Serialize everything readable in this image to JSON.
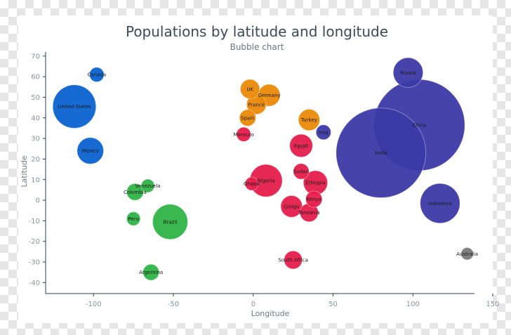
{
  "chart_data": {
    "type": "scatter",
    "title": "Populations by latitude and longitude",
    "subtitle": "Bubble chart",
    "xlabel": "Longitude",
    "ylabel": "Latitude",
    "xlim": [
      -130,
      150
    ],
    "ylim": [
      -45,
      72
    ],
    "xticks": [
      -100,
      -50,
      0,
      50,
      100,
      150
    ],
    "yticks": [
      70,
      60,
      50,
      40,
      30,
      20,
      10,
      0,
      -10,
      -20,
      -30,
      -40
    ],
    "grid": false,
    "colors": {
      "Americas": "#0a62d0",
      "South America": "#2fb344",
      "Europe": "#ea8a08",
      "Africa/Middle East": "#e51d4b",
      "Asia": "#3c3aa6",
      "Oceania": "#7a7a7a"
    },
    "points": [
      {
        "label": "Canada",
        "x": -98,
        "y": 61,
        "size": 36,
        "group": "Americas"
      },
      {
        "label": "United States",
        "x": -112,
        "y": 45.5,
        "size": 320,
        "group": "Americas"
      },
      {
        "label": "Mexico",
        "x": -102,
        "y": 24,
        "size": 120,
        "group": "Americas"
      },
      {
        "label": "Venezuela",
        "x": -66,
        "y": 7,
        "size": 30,
        "group": "South America"
      },
      {
        "label": "Colombia",
        "x": -74,
        "y": 4,
        "size": 48,
        "group": "South America"
      },
      {
        "label": "Peru",
        "x": -75,
        "y": -9,
        "size": 32,
        "group": "South America"
      },
      {
        "label": "Brazil",
        "x": -52,
        "y": -10.5,
        "size": 210,
        "group": "South America"
      },
      {
        "label": "Argentina",
        "x": -64,
        "y": -35,
        "size": 44,
        "group": "South America"
      },
      {
        "label": "UK",
        "x": -2,
        "y": 54,
        "size": 64,
        "group": "Europe"
      },
      {
        "label": "Germany",
        "x": 10,
        "y": 51,
        "size": 82,
        "group": "Europe"
      },
      {
        "label": "France",
        "x": 2,
        "y": 46.5,
        "size": 66,
        "group": "Europe"
      },
      {
        "label": "Spain",
        "x": -3.5,
        "y": 40,
        "size": 46,
        "group": "Europe"
      },
      {
        "label": "Morocco",
        "x": -6,
        "y": 32,
        "size": 35,
        "group": "Africa/Middle East"
      },
      {
        "label": "Turkey",
        "x": 35,
        "y": 39,
        "size": 78,
        "group": "Europe"
      },
      {
        "label": "Iraq",
        "x": 44,
        "y": 33,
        "size": 38,
        "group": "Asia"
      },
      {
        "label": "Egypt",
        "x": 30,
        "y": 26.5,
        "size": 90,
        "group": "Africa/Middle East"
      },
      {
        "label": "Sudan",
        "x": 30,
        "y": 14,
        "size": 42,
        "group": "Africa/Middle East"
      },
      {
        "label": "Ghana",
        "x": -1,
        "y": 8,
        "size": 30,
        "group": "Africa/Middle East"
      },
      {
        "label": "Nigeria",
        "x": 8,
        "y": 9.5,
        "size": 180,
        "group": "Africa/Middle East"
      },
      {
        "label": "Ethiopia",
        "x": 39,
        "y": 8.5,
        "size": 100,
        "group": "Africa/Middle East"
      },
      {
        "label": "Kenya",
        "x": 38,
        "y": 0.5,
        "size": 46,
        "group": "Africa/Middle East"
      },
      {
        "label": "Congo",
        "x": 24,
        "y": -3,
        "size": 80,
        "group": "Africa/Middle East"
      },
      {
        "label": "Tanzania",
        "x": 35,
        "y": -6,
        "size": 58,
        "group": "Africa/Middle East"
      },
      {
        "label": "South Africa",
        "x": 25,
        "y": -29,
        "size": 56,
        "group": "Africa/Middle East"
      },
      {
        "label": "Russia",
        "x": 97,
        "y": 62,
        "size": 152,
        "group": "Asia"
      },
      {
        "label": "China",
        "x": 104,
        "y": 36.5,
        "size": 1420,
        "group": "Asia"
      },
      {
        "label": "India",
        "x": 80,
        "y": 23,
        "size": 1380,
        "group": "Asia"
      },
      {
        "label": "Indonesia",
        "x": 117,
        "y": -1.5,
        "size": 270,
        "group": "Asia"
      },
      {
        "label": "Australia",
        "x": 134,
        "y": -26,
        "size": 26,
        "group": "Oceania"
      }
    ]
  }
}
